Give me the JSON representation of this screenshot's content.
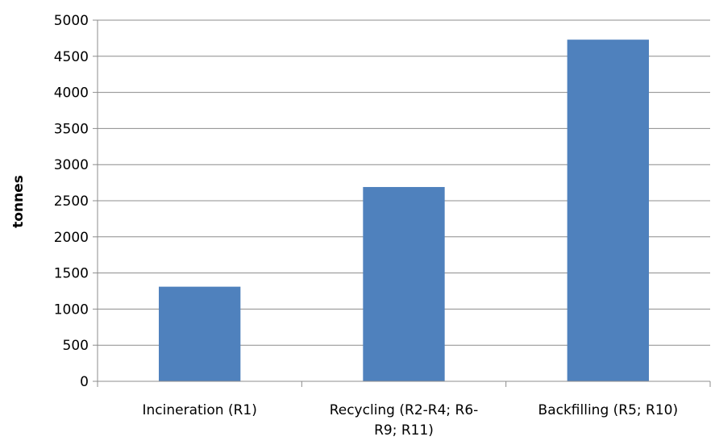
{
  "chart_data": {
    "type": "bar",
    "categories": [
      [
        "Incineration (R1)"
      ],
      [
        "Recycling (R2-R4; R6-",
        "R9; R11)"
      ],
      [
        "Backfilling (R5; R10)"
      ]
    ],
    "values": [
      1310,
      2690,
      4730
    ],
    "title": "",
    "xlabel": "",
    "ylabel": "tonnes",
    "ylim": [
      0,
      5000
    ],
    "yticks": [
      0,
      500,
      1000,
      1500,
      2000,
      2500,
      3000,
      3500,
      4000,
      4500,
      5000
    ],
    "grid": true,
    "legend": "none",
    "bar_color": "#4f81bd"
  }
}
